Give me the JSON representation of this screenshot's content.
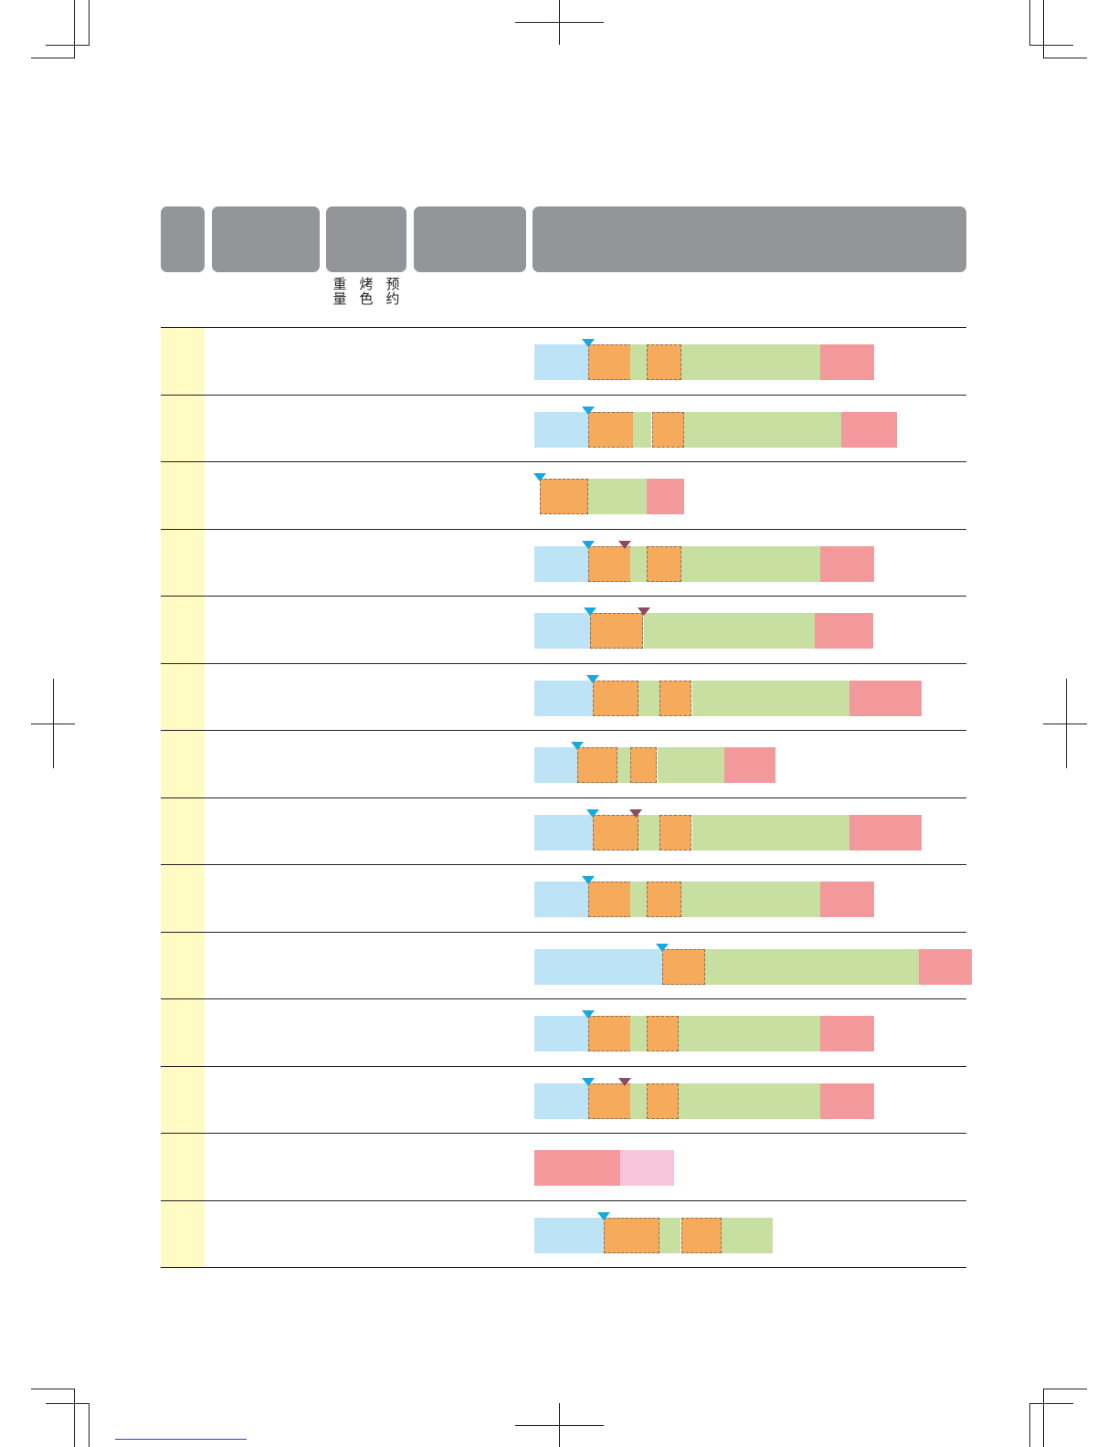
{
  "header": {
    "sublabels": [
      {
        "line1": "重",
        "line2": "量"
      },
      {
        "line1": "烤",
        "line2": "色"
      },
      {
        "line1": "预",
        "line2": "约"
      }
    ]
  },
  "colors": {
    "preheat": "#bde3f6",
    "knead": "#f6aa5c",
    "rise": "#c7e0a2",
    "bake": "#f3999c",
    "keep_warm": "#f7c6dc",
    "marker_add_ingredients": "#18a8e0",
    "marker_second": "#8e4a5e",
    "header_gray": "#939598",
    "row_highlight": "#fffbc2"
  },
  "timeline_rows": [
    {
      "segments": [
        [
          "preheat",
          0,
          1
        ],
        [
          "knead",
          1,
          1.8
        ],
        [
          "rise",
          1.8,
          2.1
        ],
        [
          "knead",
          2.1,
          2.75
        ],
        [
          "rise",
          2.75,
          5.35
        ],
        [
          "bake",
          5.35,
          6.35
        ]
      ],
      "markers": [
        [
          "blue",
          1
        ]
      ]
    },
    {
      "segments": [
        [
          "preheat",
          0,
          1
        ],
        [
          "knead",
          1,
          1.85
        ],
        [
          "rise",
          1.85,
          2.2
        ],
        [
          "knead",
          2.2,
          2.8
        ],
        [
          "rise",
          2.8,
          5.75
        ],
        [
          "bake",
          5.75,
          6.8
        ]
      ],
      "markers": [
        [
          "blue",
          1
        ]
      ]
    },
    {
      "segments": [
        [
          "knead",
          0.1,
          1
        ],
        [
          "rise",
          1,
          2.1
        ],
        [
          "bake",
          2.1,
          2.8
        ]
      ],
      "markers": [
        [
          "blue",
          0.1
        ]
      ]
    },
    {
      "segments": [
        [
          "preheat",
          0,
          1
        ],
        [
          "knead",
          1,
          1.8
        ],
        [
          "rise",
          1.8,
          2.1
        ],
        [
          "knead",
          2.1,
          2.75
        ],
        [
          "rise",
          2.75,
          5.35
        ],
        [
          "bake",
          5.35,
          6.35
        ]
      ],
      "markers": [
        [
          "blue",
          1
        ],
        [
          "maroon",
          1.7
        ]
      ]
    },
    {
      "segments": [
        [
          "preheat",
          0,
          1.05
        ],
        [
          "knead",
          1.05,
          2.05
        ],
        [
          "rise",
          2.05,
          5.25
        ],
        [
          "bake",
          5.25,
          6.35
        ]
      ],
      "markers": [
        [
          "blue",
          1.05
        ],
        [
          "maroon",
          2.05
        ]
      ]
    },
    {
      "segments": [
        [
          "preheat",
          0,
          1.1
        ],
        [
          "knead",
          1.1,
          1.95
        ],
        [
          "rise",
          1.95,
          2.35
        ],
        [
          "knead",
          2.35,
          2.95
        ],
        [
          "rise",
          2.95,
          5.9
        ],
        [
          "bake",
          5.9,
          7.25
        ]
      ],
      "markers": [
        [
          "blue",
          1.1
        ]
      ]
    },
    {
      "segments": [
        [
          "preheat",
          0,
          0.8
        ],
        [
          "knead",
          0.8,
          1.55
        ],
        [
          "rise",
          1.55,
          1.8
        ],
        [
          "knead",
          1.8,
          2.3
        ],
        [
          "rise",
          2.3,
          3.55
        ],
        [
          "bake",
          3.55,
          4.5
        ]
      ],
      "markers": [
        [
          "blue",
          0.8
        ]
      ]
    },
    {
      "segments": [
        [
          "preheat",
          0,
          1.1
        ],
        [
          "knead",
          1.1,
          1.95
        ],
        [
          "rise",
          1.95,
          2.35
        ],
        [
          "knead",
          2.35,
          2.95
        ],
        [
          "rise",
          2.95,
          5.9
        ],
        [
          "bake",
          5.9,
          7.25
        ]
      ],
      "markers": [
        [
          "blue",
          1.1
        ],
        [
          "maroon",
          1.9
        ]
      ]
    },
    {
      "segments": [
        [
          "preheat",
          0,
          1
        ],
        [
          "knead",
          1,
          1.8
        ],
        [
          "rise",
          1.8,
          2.1
        ],
        [
          "knead",
          2.1,
          2.75
        ],
        [
          "rise",
          2.75,
          5.35
        ],
        [
          "bake",
          5.35,
          6.35
        ]
      ],
      "markers": [
        [
          "blue",
          1
        ]
      ]
    },
    {
      "segments": [
        [
          "preheat",
          0,
          2.4
        ],
        [
          "knead",
          2.4,
          3.2
        ],
        [
          "rise",
          3.2,
          7.2
        ],
        [
          "bake",
          7.2,
          8.2
        ]
      ],
      "markers": [
        [
          "blue",
          2.4
        ]
      ]
    },
    {
      "segments": [
        [
          "preheat",
          0,
          1
        ],
        [
          "knead",
          1,
          1.8
        ],
        [
          "rise",
          1.8,
          2.1
        ],
        [
          "knead",
          2.1,
          2.7
        ],
        [
          "rise",
          2.7,
          5.35
        ],
        [
          "bake",
          5.35,
          6.35
        ]
      ],
      "markers": [
        [
          "blue",
          1
        ]
      ]
    },
    {
      "segments": [
        [
          "preheat",
          0,
          1
        ],
        [
          "knead",
          1,
          1.8
        ],
        [
          "rise",
          1.8,
          2.1
        ],
        [
          "knead",
          2.1,
          2.7
        ],
        [
          "rise",
          2.7,
          5.35
        ],
        [
          "bake",
          5.35,
          6.35
        ]
      ],
      "markers": [
        [
          "blue",
          1
        ],
        [
          "maroon",
          1.7
        ]
      ]
    },
    {
      "segments": [
        [
          "bake",
          0,
          1.6
        ],
        [
          "keep_warm",
          1.6,
          2.6
        ]
      ],
      "markers": []
    },
    {
      "segments": [
        [
          "preheat",
          0,
          1.3
        ],
        [
          "knead",
          1.3,
          2.35
        ],
        [
          "rise",
          2.35,
          2.75
        ],
        [
          "knead",
          2.75,
          3.5
        ],
        [
          "rise",
          3.5,
          4.45
        ]
      ],
      "markers": [
        [
          "blue",
          1.3
        ]
      ]
    }
  ]
}
